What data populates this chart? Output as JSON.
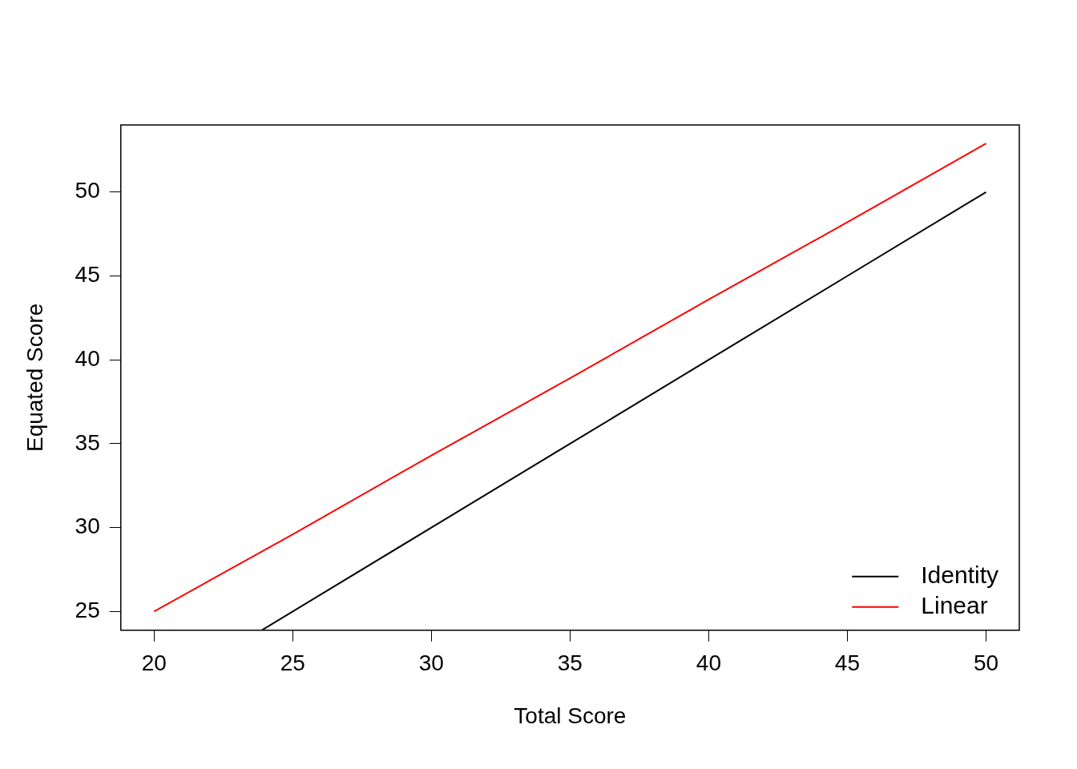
{
  "chart_data": {
    "type": "line",
    "xlabel": "Total Score",
    "ylabel": "Equated Score",
    "xlim": [
      18.8,
      51.2
    ],
    "ylim": [
      23.88,
      54.0
    ],
    "xticks": [
      20,
      25,
      30,
      35,
      40,
      45,
      50
    ],
    "yticks": [
      25,
      30,
      35,
      40,
      45,
      50
    ],
    "grid": false,
    "legend": "bottom right",
    "marker": "none",
    "line_style": "solid",
    "series": [
      {
        "name": "Identity",
        "color": "#000000",
        "x": [
          23.88,
          25,
          30,
          35,
          40,
          45,
          50
        ],
        "values": [
          23.88,
          25,
          30,
          35,
          40,
          45,
          50
        ]
      },
      {
        "name": "Linear",
        "color": "#ff0000",
        "x": [
          20,
          25,
          30,
          35,
          40,
          45,
          50
        ],
        "values": [
          25,
          29.6,
          34.3,
          38.9,
          43.6,
          48.2,
          52.9
        ]
      }
    ]
  }
}
